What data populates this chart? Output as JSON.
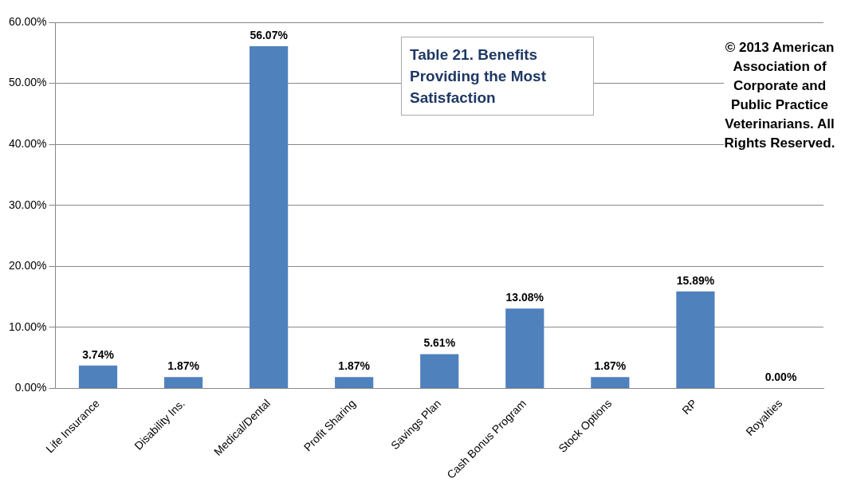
{
  "chart_data": {
    "type": "bar",
    "title": "Table 21.  Benefits Providing the Most Satisfaction",
    "categories": [
      "Life Insurance",
      "Disability Ins.",
      "Medical/Dental",
      "Profit Sharing",
      "Savings Plan",
      "Cash Bonus Program",
      "Stock Options",
      "RP",
      "Royalties"
    ],
    "values": [
      3.74,
      1.87,
      56.07,
      1.87,
      5.61,
      13.08,
      1.87,
      15.89,
      0
    ],
    "value_labels": [
      "3.74%",
      "1.87%",
      "56.07%",
      "1.87%",
      "5.61%",
      "13.08%",
      "1.87%",
      "15.89%",
      "0.00%"
    ],
    "color": "#4f81bd",
    "ylim": [
      0,
      60
    ],
    "yticks": [
      {
        "value": 0,
        "label": "0.00%"
      },
      {
        "value": 10,
        "label": "10.00%"
      },
      {
        "value": 20,
        "label": "20.00%"
      },
      {
        "value": 30,
        "label": "30.00%"
      },
      {
        "value": 40,
        "label": "40.00%"
      },
      {
        "value": 50,
        "label": "50.00%"
      },
      {
        "value": 60,
        "label": "60.00%"
      }
    ],
    "grid": "y",
    "legend": false,
    "annotations": [
      "© 2013 American Association of Corporate and Public Practice Veterinarians. All Rights Reserved."
    ]
  }
}
